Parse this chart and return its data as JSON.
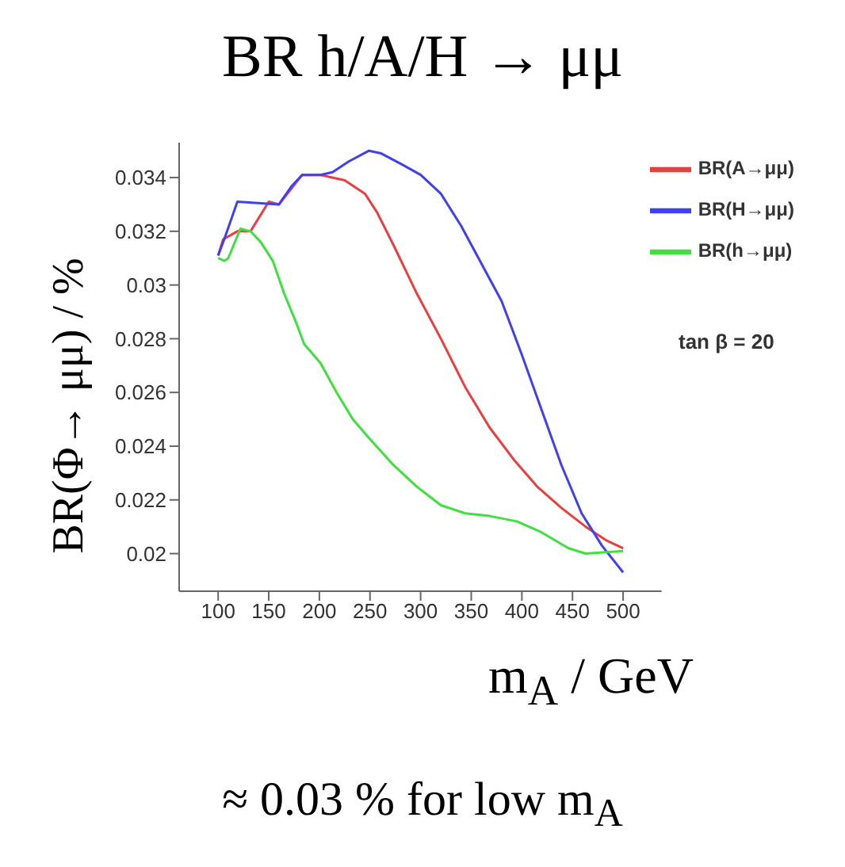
{
  "chart_data": {
    "type": "line",
    "title": "BR h/A/H → μμ",
    "xlabel": "m$_{A}$ / GeV",
    "ylabel": "BR(Φ→ μμ) / %",
    "annotations": [
      "tan β = 20",
      "≈ 0.03 % for low m$_{A}$"
    ],
    "xlim": [
      61.5,
      538
    ],
    "xticks": [
      100,
      150,
      200,
      250,
      300,
      350,
      400,
      450,
      500
    ],
    "ylim": [
      0.0186,
      0.0353
    ],
    "yticks": [
      0.02,
      0.022,
      0.024,
      0.026,
      0.028,
      0.03,
      0.032,
      0.034
    ],
    "grid": false,
    "legend": "top right",
    "marker": "none",
    "line_style": "solid",
    "series": [
      {
        "name": "BR(A→μμ)",
        "color": "#e84040",
        "x": [
          100,
          105,
          119,
          125,
          132,
          150,
          160,
          183,
          201,
          225,
          245,
          257,
          273,
          296,
          320,
          344,
          368,
          392,
          415,
          439,
          463,
          483,
          500
        ],
        "values": [
          0.0311,
          0.0317,
          0.032,
          0.032,
          0.032,
          0.0331,
          0.033,
          0.0341,
          0.0341,
          0.0339,
          0.0334,
          0.0327,
          0.0315,
          0.0297,
          0.028,
          0.0262,
          0.0247,
          0.0235,
          0.0225,
          0.0217,
          0.021,
          0.0205,
          0.0202
        ]
      },
      {
        "name": "BR(H→μμ)",
        "color": "#4040f0",
        "x": [
          100,
          106,
          119,
          160,
          173,
          183,
          201,
          213,
          229,
          249,
          261,
          281,
          300,
          320,
          340,
          360,
          380,
          400,
          419,
          439,
          459,
          479,
          500
        ],
        "values": [
          0.0311,
          0.0317,
          0.0331,
          0.033,
          0.0337,
          0.0341,
          0.0341,
          0.0342,
          0.0346,
          0.035,
          0.0349,
          0.0345,
          0.0341,
          0.0334,
          0.0322,
          0.0308,
          0.0294,
          0.0274,
          0.0254,
          0.0233,
          0.0215,
          0.0203,
          0.0193
        ]
      },
      {
        "name": "BR(h→μμ)",
        "color": "#40e040",
        "x": [
          100,
          106,
          110,
          122,
          132,
          142,
          154,
          165,
          177,
          185,
          201,
          217,
          233,
          249,
          273,
          296,
          320,
          344,
          368,
          395,
          419,
          446,
          463,
          500
        ],
        "values": [
          0.031,
          0.0309,
          0.031,
          0.0321,
          0.032,
          0.0316,
          0.0309,
          0.0297,
          0.0286,
          0.0278,
          0.0271,
          0.026,
          0.025,
          0.0243,
          0.0233,
          0.0225,
          0.0218,
          0.0215,
          0.0214,
          0.0212,
          0.0208,
          0.0202,
          0.02,
          0.0201
        ]
      }
    ]
  }
}
